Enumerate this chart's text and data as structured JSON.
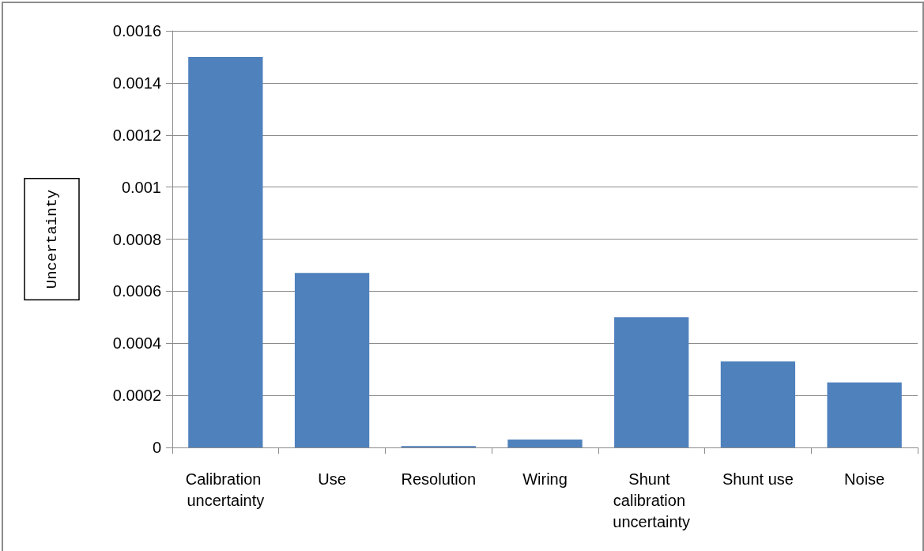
{
  "chart_data": {
    "type": "bar",
    "ylabel": "Uncertainty",
    "categories": [
      "Calibration uncertainty",
      "Use",
      "Resolution",
      "Wiring",
      "Shunt calibration uncertainty",
      "Shunt use",
      "Noise"
    ],
    "values": [
      0.0015,
      0.00067,
      5e-06,
      3e-05,
      0.0005,
      0.00033,
      0.00025
    ],
    "color": "#4f81bd",
    "ylim": [
      0,
      0.0016
    ],
    "yticks": [
      0,
      0.0002,
      0.0004,
      0.0006,
      0.0008,
      0.001,
      0.0012,
      0.0014,
      0.0016
    ],
    "grid": "y"
  }
}
